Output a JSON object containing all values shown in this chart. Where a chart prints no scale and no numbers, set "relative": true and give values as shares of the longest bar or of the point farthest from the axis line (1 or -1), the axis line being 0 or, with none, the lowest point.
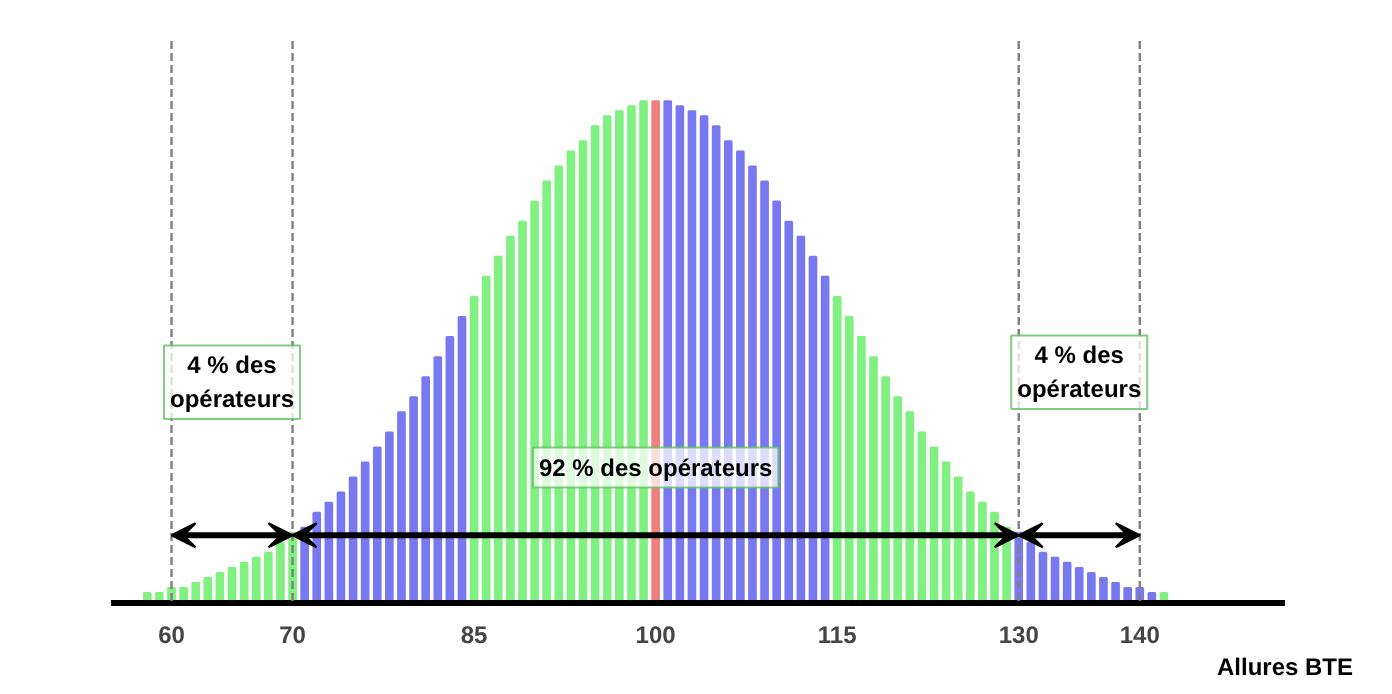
{
  "chart_data": {
    "type": "bar",
    "relative": true,
    "xlabel": "Allures BTE",
    "x": [
      58,
      59,
      60,
      61,
      62,
      63,
      64,
      65,
      66,
      67,
      68,
      69,
      70,
      71,
      72,
      73,
      74,
      75,
      76,
      77,
      78,
      79,
      80,
      81,
      82,
      83,
      84,
      85,
      86,
      87,
      88,
      89,
      90,
      91,
      92,
      93,
      94,
      95,
      96,
      97,
      98,
      99,
      100,
      101,
      102,
      103,
      104,
      105,
      106,
      107,
      108,
      109,
      110,
      111,
      112,
      113,
      114,
      115,
      116,
      117,
      118,
      119,
      120,
      121,
      122,
      123,
      124,
      125,
      126,
      127,
      128,
      129,
      130,
      131,
      132,
      133,
      134,
      135,
      136,
      137,
      138,
      139,
      140,
      141,
      142
    ],
    "values": [
      0.02,
      0.02,
      0.03,
      0.03,
      0.04,
      0.05,
      0.06,
      0.07,
      0.08,
      0.09,
      0.1,
      0.12,
      0.14,
      0.15,
      0.18,
      0.2,
      0.22,
      0.25,
      0.28,
      0.31,
      0.34,
      0.38,
      0.41,
      0.45,
      0.49,
      0.53,
      0.57,
      0.61,
      0.65,
      0.69,
      0.73,
      0.76,
      0.8,
      0.84,
      0.87,
      0.9,
      0.92,
      0.95,
      0.97,
      0.98,
      0.99,
      1.0,
      1.0,
      1.0,
      0.99,
      0.98,
      0.97,
      0.95,
      0.92,
      0.9,
      0.87,
      0.84,
      0.8,
      0.76,
      0.73,
      0.69,
      0.65,
      0.61,
      0.57,
      0.53,
      0.49,
      0.45,
      0.41,
      0.38,
      0.34,
      0.31,
      0.28,
      0.25,
      0.22,
      0.2,
      0.18,
      0.15,
      0.14,
      0.12,
      0.1,
      0.09,
      0.08,
      0.07,
      0.06,
      0.05,
      0.04,
      0.03,
      0.03,
      0.02,
      0.02
    ],
    "colors": [
      "#80f080",
      "#80f080",
      "#80f080",
      "#80f080",
      "#80f080",
      "#80f080",
      "#80f080",
      "#80f080",
      "#80f080",
      "#80f080",
      "#80f080",
      "#80f080",
      "#80f080",
      "#7878f0",
      "#7878f0",
      "#7878f0",
      "#7878f0",
      "#7878f0",
      "#7878f0",
      "#7878f0",
      "#7878f0",
      "#7878f0",
      "#7878f0",
      "#7878f0",
      "#7878f0",
      "#7878f0",
      "#7878f0",
      "#80f080",
      "#80f080",
      "#80f080",
      "#80f080",
      "#80f080",
      "#80f080",
      "#80f080",
      "#80f080",
      "#80f080",
      "#80f080",
      "#80f080",
      "#80f080",
      "#80f080",
      "#80f080",
      "#80f080",
      "#f08080",
      "#7878f0",
      "#7878f0",
      "#7878f0",
      "#7878f0",
      "#7878f0",
      "#7878f0",
      "#7878f0",
      "#7878f0",
      "#7878f0",
      "#7878f0",
      "#7878f0",
      "#7878f0",
      "#7878f0",
      "#7878f0",
      "#80f080",
      "#80f080",
      "#80f080",
      "#80f080",
      "#80f080",
      "#80f080",
      "#80f080",
      "#80f080",
      "#80f080",
      "#80f080",
      "#80f080",
      "#80f080",
      "#80f080",
      "#80f080",
      "#80f080",
      "#7878f0",
      "#7878f0",
      "#7878f0",
      "#7878f0",
      "#7878f0",
      "#7878f0",
      "#7878f0",
      "#7878f0",
      "#7878f0",
      "#7878f0",
      "#7878f0",
      "#7878f0",
      "#80f080"
    ],
    "xlim": [
      55,
      152
    ],
    "xticks": [
      60,
      70,
      85,
      100,
      115,
      130,
      140
    ],
    "grid": false,
    "ref_lines": [
      {
        "axis": "x",
        "value": 60,
        "line_style": "dashed",
        "color": "#808080"
      },
      {
        "axis": "x",
        "value": 70,
        "line_style": "dashed",
        "color": "#808080"
      },
      {
        "axis": "x",
        "value": 130,
        "line_style": "dashed",
        "color": "#808080"
      },
      {
        "axis": "x",
        "value": 140,
        "line_style": "dashed",
        "color": "#808080"
      }
    ],
    "annotations": [
      "4 % des\nopérateurs",
      "92 % des opérateurs",
      "4 % des\nopérateurs"
    ]
  }
}
